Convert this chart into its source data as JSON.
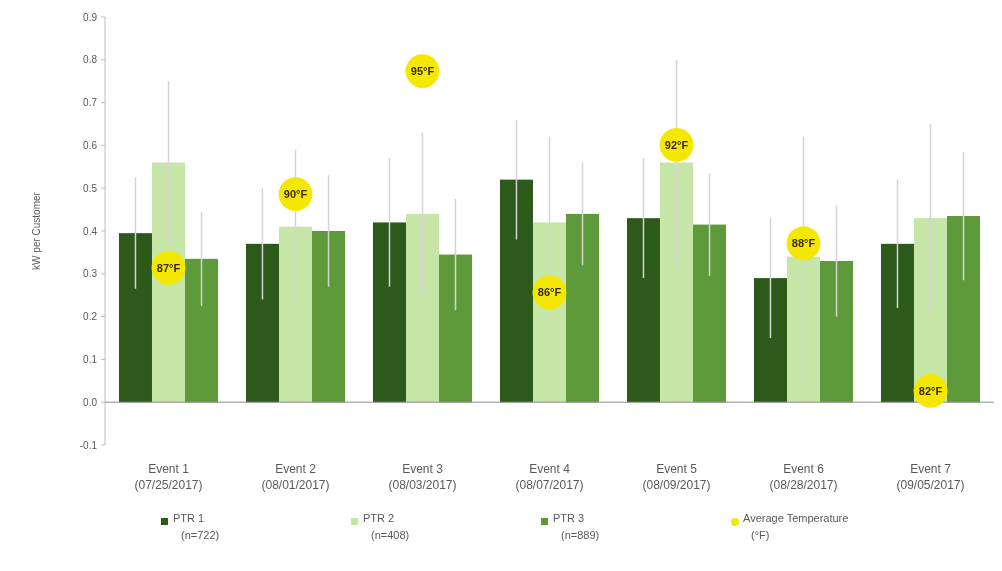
{
  "chart_data": {
    "type": "bar",
    "ylabel": "kW per Customer",
    "categories": [
      "Event 1 (07/25/2017)",
      "Event 2 (08/01/2017)",
      "Event 3 (08/03/2017)",
      "Event 4 (08/07/2017)",
      "Event 5 (08/09/2017)",
      "Event 6 (08/28/2017)",
      "Event 7 (09/05/2017)"
    ],
    "series": [
      {
        "name": "PTR 1 (n=722)",
        "color": "#2d5a1b",
        "values": [
          0.395,
          0.37,
          0.42,
          0.52,
          0.43,
          0.29,
          0.37
        ],
        "errors": [
          0.13,
          0.13,
          0.15,
          0.14,
          0.14,
          0.14,
          0.15
        ]
      },
      {
        "name": "PTR 2 (n=408)",
        "color": "#c5e6a6",
        "values": [
          0.56,
          0.41,
          0.44,
          0.42,
          0.56,
          0.34,
          0.43
        ],
        "errors": [
          0.19,
          0.18,
          0.19,
          0.2,
          0.24,
          0.28,
          0.22
        ]
      },
      {
        "name": "PTR 3 (n=889)",
        "color": "#5f9a3a",
        "values": [
          0.335,
          0.4,
          0.345,
          0.44,
          0.415,
          0.33,
          0.435
        ],
        "errors": [
          0.11,
          0.13,
          0.13,
          0.12,
          0.12,
          0.13,
          0.15
        ]
      },
      {
        "name": "Average Temperature (°F)",
        "type": "scatter",
        "axis": "y2",
        "color": "#f5e800",
        "x": [
          "Event 1 (07/25/2017)",
          "Event 2 (08/01/2017)",
          "Event 3 (08/03/2017)",
          "Event 4 (08/07/2017)",
          "Event 5 (08/09/2017)",
          "Event 6 (08/28/2017)",
          "Event 7 (09/05/2017)"
        ],
        "values": [
          87,
          90,
          95,
          86,
          92,
          88,
          82
        ],
        "value_labels": [
          "87°F",
          "90°F",
          "95°F",
          "86°F",
          "92°F",
          "88°F",
          "82°F"
        ]
      }
    ],
    "ylim": [
      -0.1,
      0.9
    ],
    "yticks": [
      -0.1,
      {
        "value": 0,
        "label": "0.0"
      },
      0.1,
      0.2,
      0.3,
      0.4,
      0.5,
      0.6,
      0.7,
      0.8,
      0.9
    ],
    "y2lim": [
      79.8,
      97.2
    ],
    "marker": "circle",
    "legend": "bottom"
  }
}
